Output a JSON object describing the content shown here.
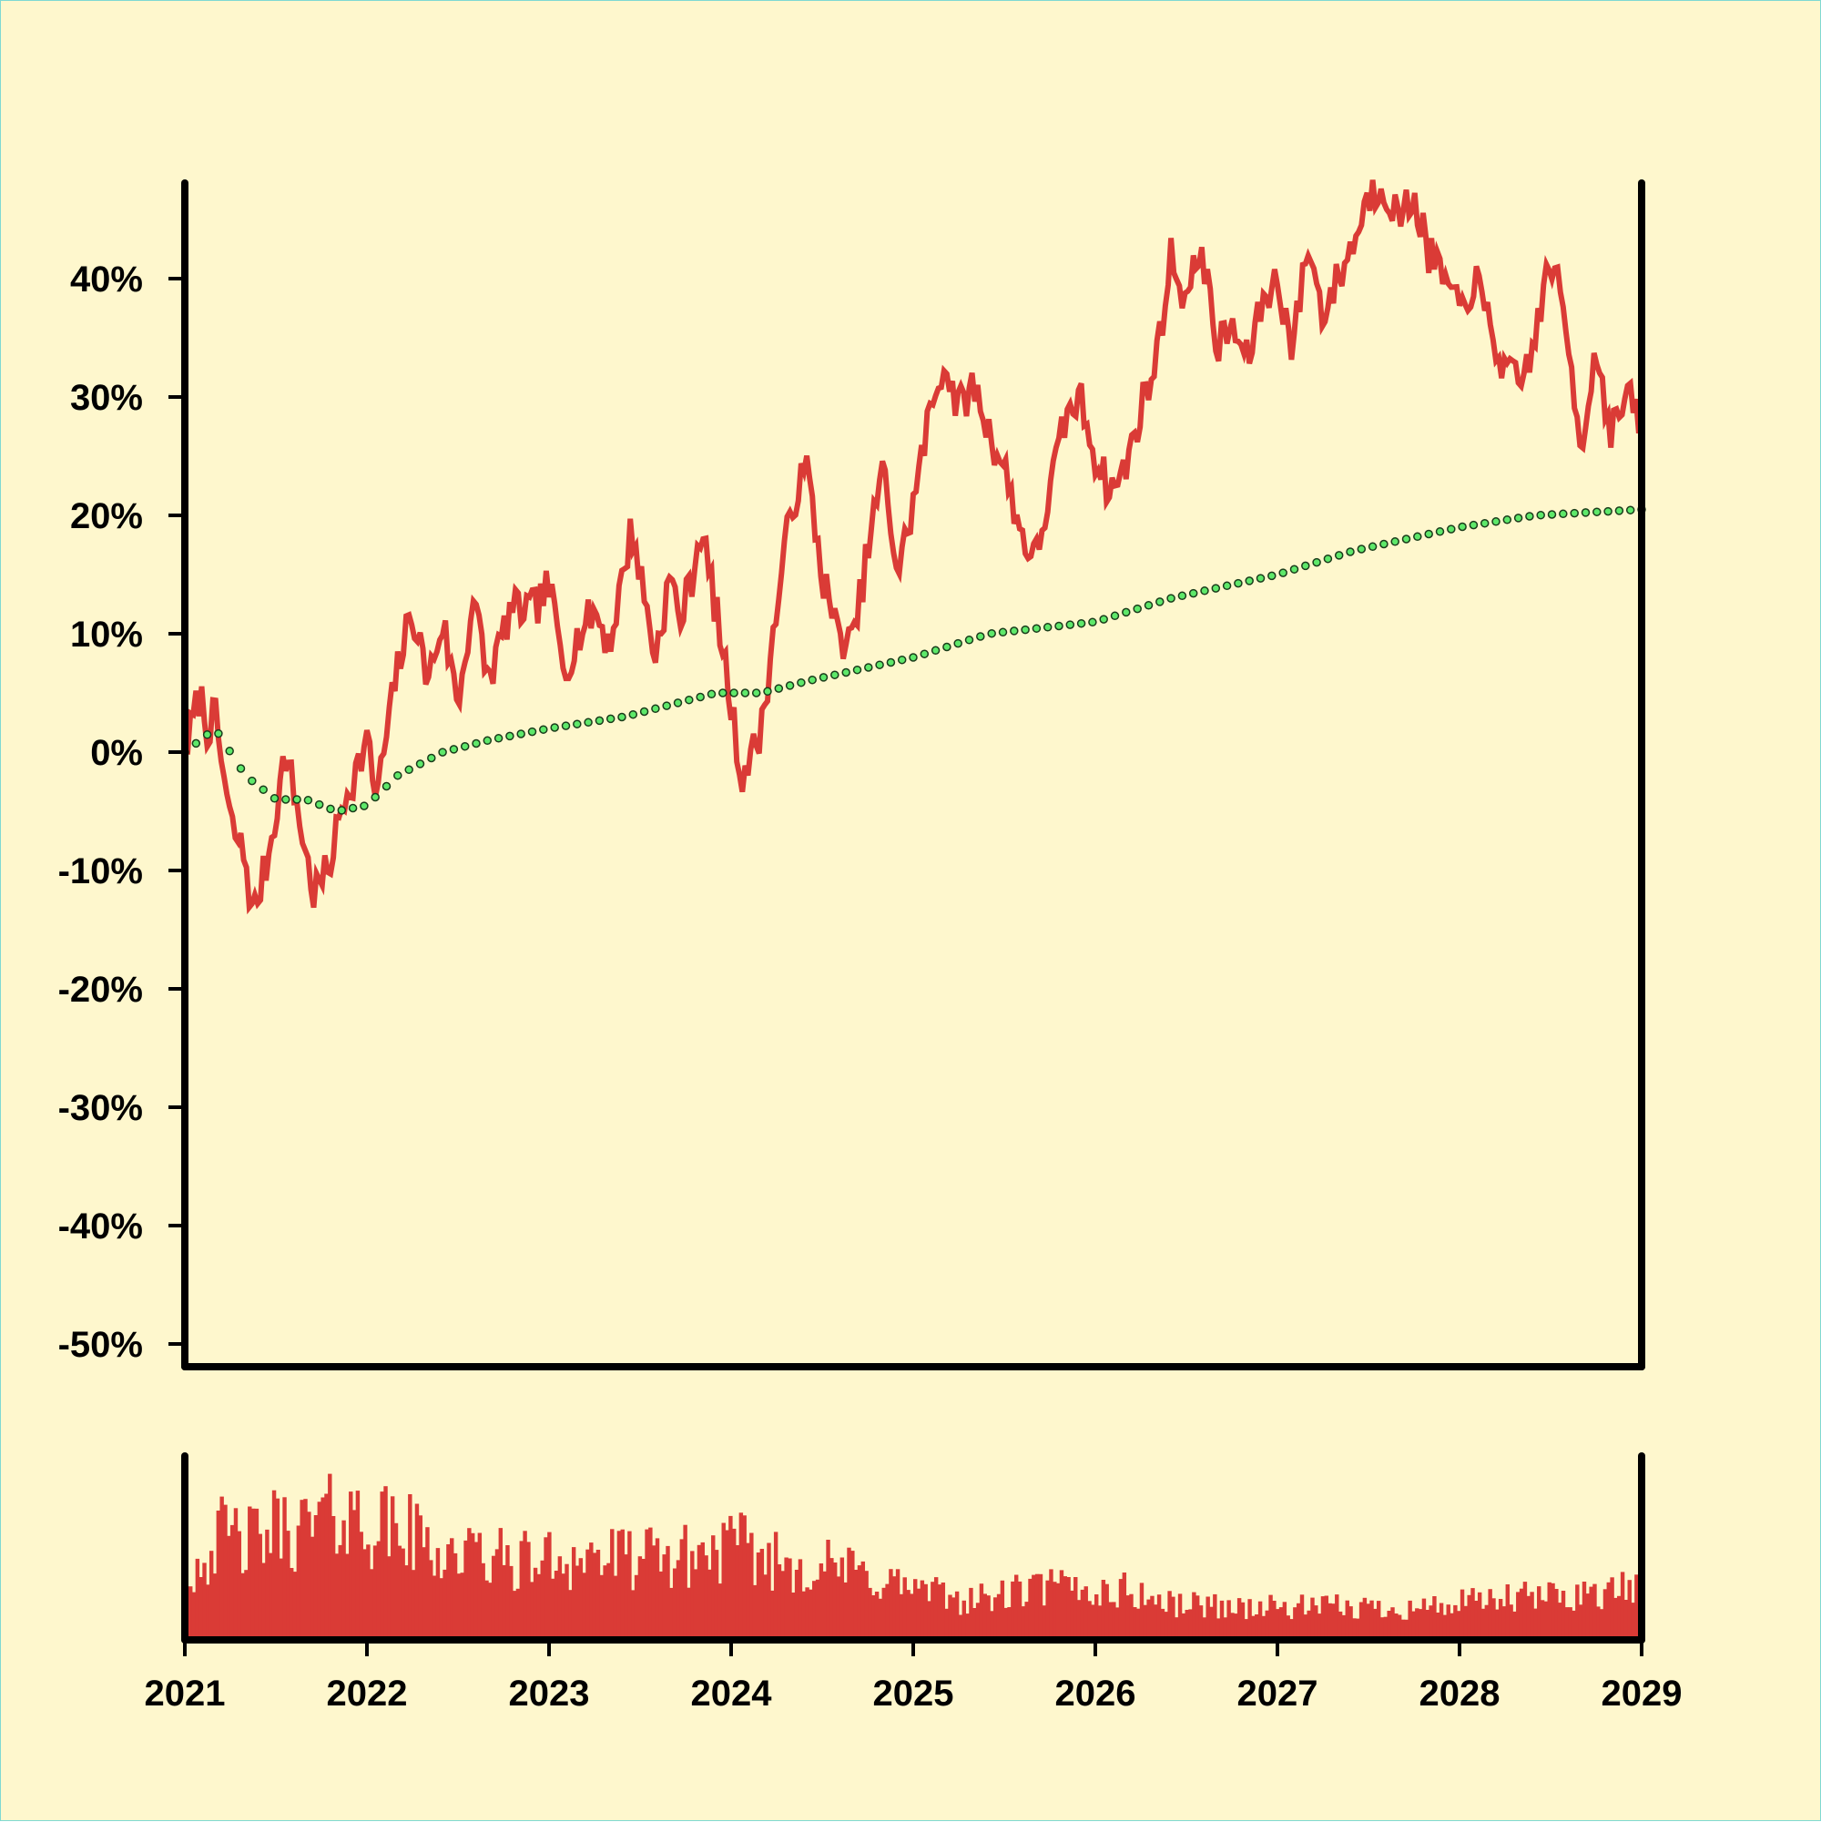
{
  "chart_data": [
    {
      "type": "line",
      "title": "",
      "xlabel": "",
      "ylabel": "",
      "ylim": [
        -0.5,
        0.48
      ],
      "xlim": [
        "2021-01-01",
        "2029-01-01"
      ],
      "y_ticks": [
        -0.5,
        -0.4,
        -0.3,
        -0.2,
        -0.1,
        0,
        0.1,
        0.2,
        0.3,
        0.4
      ],
      "y_tick_labels": [
        "-50%",
        "-40%",
        "-30%",
        "-20%",
        "-10%",
        "0%",
        "10%",
        "20%",
        "30%",
        "40%"
      ],
      "grid": false,
      "colors": {
        "price": "#da3b36",
        "trend": "#5ee86a",
        "trend_outline": "#1a3b1a",
        "axis": "#000000"
      },
      "series": [
        {
          "style": "solid-line",
          "color": "#da3b36",
          "points": [
            [
              "2021-01-01",
              0.0
            ],
            [
              "2021-02-01",
              0.05
            ],
            [
              "2021-02-15",
              0.02
            ],
            [
              "2021-03-01",
              0.03
            ],
            [
              "2021-04-01",
              -0.06
            ],
            [
              "2021-05-01",
              -0.09
            ],
            [
              "2021-05-15",
              -0.14
            ],
            [
              "2021-06-15",
              -0.09
            ],
            [
              "2021-07-01",
              -0.05
            ],
            [
              "2021-07-20",
              0.0
            ],
            [
              "2021-08-15",
              -0.05
            ],
            [
              "2021-09-15",
              -0.12
            ],
            [
              "2021-10-15",
              -0.1
            ],
            [
              "2021-11-15",
              -0.04
            ],
            [
              "2021-12-15",
              -0.01
            ],
            [
              "2022-01-01",
              0.01
            ],
            [
              "2022-01-20",
              -0.04
            ],
            [
              "2022-03-01",
              0.07
            ],
            [
              "2022-04-01",
              0.12
            ],
            [
              "2022-05-01",
              0.06
            ],
            [
              "2022-06-01",
              0.11
            ],
            [
              "2022-07-01",
              0.04
            ],
            [
              "2022-08-01",
              0.13
            ],
            [
              "2022-09-01",
              0.06
            ],
            [
              "2022-10-15",
              0.12
            ],
            [
              "2022-12-01",
              0.12
            ],
            [
              "2023-01-01",
              0.14
            ],
            [
              "2023-02-01",
              0.07
            ],
            [
              "2023-03-01",
              0.1
            ],
            [
              "2023-04-01",
              0.12
            ],
            [
              "2023-05-01",
              0.09
            ],
            [
              "2023-06-15",
              0.19
            ],
            [
              "2023-08-01",
              0.08
            ],
            [
              "2023-09-01",
              0.15
            ],
            [
              "2023-09-20",
              0.11
            ],
            [
              "2023-10-15",
              0.15
            ],
            [
              "2023-11-01",
              0.19
            ],
            [
              "2023-12-01",
              0.12
            ],
            [
              "2024-01-01",
              0.04
            ],
            [
              "2024-01-20",
              -0.02
            ],
            [
              "2024-02-15",
              0.0
            ],
            [
              "2024-03-01",
              0.02
            ],
            [
              "2024-04-01",
              0.12
            ],
            [
              "2024-05-01",
              0.21
            ],
            [
              "2024-06-01",
              0.24
            ],
            [
              "2024-07-01",
              0.15
            ],
            [
              "2024-08-01",
              0.1
            ],
            [
              "2024-09-01",
              0.09
            ],
            [
              "2024-10-01",
              0.17
            ],
            [
              "2024-11-01",
              0.24
            ],
            [
              "2024-12-01",
              0.15
            ],
            [
              "2025-01-01",
              0.21
            ],
            [
              "2025-02-01",
              0.28
            ],
            [
              "2025-03-01",
              0.33
            ],
            [
              "2025-04-01",
              0.29
            ],
            [
              "2025-05-01",
              0.31
            ],
            [
              "2025-06-01",
              0.27
            ],
            [
              "2025-07-01",
              0.24
            ],
            [
              "2025-08-01",
              0.19
            ],
            [
              "2025-09-01",
              0.16
            ],
            [
              "2025-10-01",
              0.22
            ],
            [
              "2025-11-01",
              0.28
            ],
            [
              "2025-12-01",
              0.3
            ],
            [
              "2026-01-01",
              0.25
            ],
            [
              "2026-02-01",
              0.22
            ],
            [
              "2026-03-01",
              0.24
            ],
            [
              "2026-04-01",
              0.29
            ],
            [
              "2026-05-01",
              0.33
            ],
            [
              "2026-06-01",
              0.42
            ],
            [
              "2026-07-01",
              0.38
            ],
            [
              "2026-08-01",
              0.43
            ],
            [
              "2026-09-01",
              0.34
            ],
            [
              "2026-10-01",
              0.36
            ],
            [
              "2026-11-01",
              0.33
            ],
            [
              "2026-12-01",
              0.38
            ],
            [
              "2027-01-01",
              0.4
            ],
            [
              "2027-02-01",
              0.34
            ],
            [
              "2027-03-01",
              0.43
            ],
            [
              "2027-04-01",
              0.37
            ],
            [
              "2027-05-01",
              0.4
            ],
            [
              "2027-06-01",
              0.43
            ],
            [
              "2027-07-01",
              0.47
            ],
            [
              "2027-08-01",
              0.48
            ],
            [
              "2027-09-01",
              0.45
            ],
            [
              "2027-10-01",
              0.47
            ],
            [
              "2027-11-01",
              0.42
            ],
            [
              "2027-12-01",
              0.4
            ],
            [
              "2028-01-01",
              0.37
            ],
            [
              "2028-02-01",
              0.4
            ],
            [
              "2028-03-01",
              0.36
            ],
            [
              "2028-04-01",
              0.32
            ],
            [
              "2028-05-01",
              0.31
            ],
            [
              "2028-06-01",
              0.35
            ],
            [
              "2028-07-01",
              0.42
            ],
            [
              "2028-08-01",
              0.36
            ],
            [
              "2028-09-01",
              0.26
            ],
            [
              "2028-10-01",
              0.34
            ],
            [
              "2028-11-01",
              0.27
            ],
            [
              "2028-12-01",
              0.3
            ],
            [
              "2029-01-01",
              0.28
            ]
          ]
        },
        {
          "style": "dotted-markers",
          "color": "#5ee86a",
          "points": [
            [
              "2021-01-01",
              0.0
            ],
            [
              "2021-03-01",
              0.02
            ],
            [
              "2021-05-01",
              -0.02
            ],
            [
              "2021-07-01",
              -0.04
            ],
            [
              "2021-09-01",
              -0.04
            ],
            [
              "2021-11-01",
              -0.05
            ],
            [
              "2022-01-01",
              -0.045
            ],
            [
              "2022-03-01",
              -0.02
            ],
            [
              "2022-06-01",
              0.0
            ],
            [
              "2022-09-01",
              0.01
            ],
            [
              "2023-01-01",
              0.02
            ],
            [
              "2023-06-01",
              0.03
            ],
            [
              "2023-12-01",
              0.05
            ],
            [
              "2024-03-01",
              0.05
            ],
            [
              "2024-06-01",
              0.06
            ],
            [
              "2025-01-01",
              0.08
            ],
            [
              "2025-06-01",
              0.1
            ],
            [
              "2026-01-01",
              0.11
            ],
            [
              "2026-06-01",
              0.13
            ],
            [
              "2027-01-01",
              0.15
            ],
            [
              "2027-06-01",
              0.17
            ],
            [
              "2028-01-01",
              0.19
            ],
            [
              "2028-06-01",
              0.2
            ],
            [
              "2029-01-01",
              0.205
            ]
          ]
        }
      ]
    },
    {
      "type": "bar",
      "title": "",
      "color": "#da3b36",
      "x_tick_labels": [
        "2021",
        "2022",
        "2023",
        "2024",
        "2025",
        "2026",
        "2027",
        "2028",
        "2029"
      ],
      "bar_count": 416,
      "relative_volume": [
        [
          2021.0,
          0.4
        ],
        [
          2021.1,
          0.55
        ],
        [
          2021.2,
          0.65
        ],
        [
          2021.35,
          0.6
        ],
        [
          2021.5,
          0.7
        ],
        [
          2021.65,
          0.68
        ],
        [
          2021.8,
          0.8
        ],
        [
          2021.9,
          0.75
        ],
        [
          2022.0,
          0.72
        ],
        [
          2022.2,
          0.66
        ],
        [
          2022.4,
          0.55
        ],
        [
          2022.6,
          0.52
        ],
        [
          2022.8,
          0.48
        ],
        [
          2023.0,
          0.5
        ],
        [
          2023.2,
          0.52
        ],
        [
          2023.4,
          0.5
        ],
        [
          2023.6,
          0.5
        ],
        [
          2023.8,
          0.52
        ],
        [
          2024.0,
          0.58
        ],
        [
          2024.2,
          0.5
        ],
        [
          2024.4,
          0.46
        ],
        [
          2024.6,
          0.44
        ],
        [
          2024.8,
          0.38
        ],
        [
          2025.0,
          0.32
        ],
        [
          2025.2,
          0.26
        ],
        [
          2025.4,
          0.25
        ],
        [
          2025.6,
          0.3
        ],
        [
          2025.8,
          0.33
        ],
        [
          2026.0,
          0.3
        ],
        [
          2026.2,
          0.3
        ],
        [
          2026.4,
          0.22
        ],
        [
          2026.6,
          0.22
        ],
        [
          2026.8,
          0.2
        ],
        [
          2027.0,
          0.2
        ],
        [
          2027.2,
          0.2
        ],
        [
          2027.4,
          0.2
        ],
        [
          2027.6,
          0.2
        ],
        [
          2027.8,
          0.2
        ],
        [
          2028.0,
          0.22
        ],
        [
          2028.2,
          0.24
        ],
        [
          2028.4,
          0.26
        ],
        [
          2028.6,
          0.28
        ],
        [
          2028.8,
          0.3
        ],
        [
          2029.0,
          0.3
        ]
      ]
    }
  ]
}
